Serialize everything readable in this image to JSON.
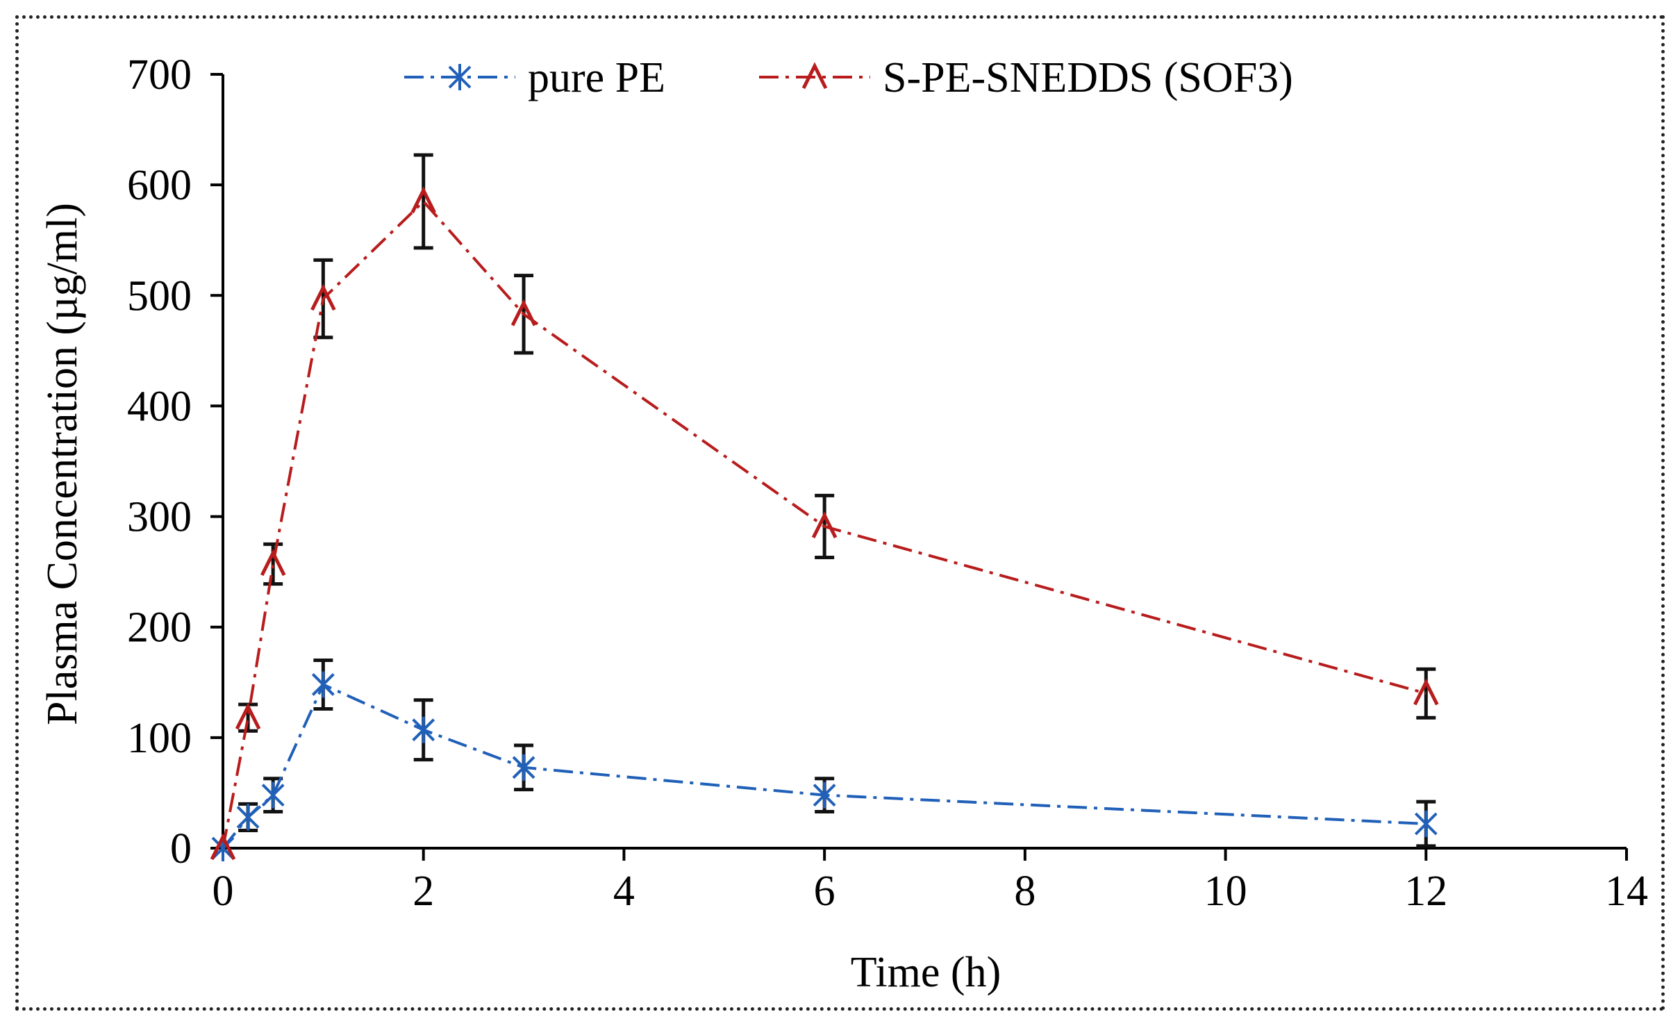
{
  "chart_data": {
    "type": "line",
    "title": "",
    "xlabel": "Time (h)",
    "ylabel": "Plasma  Concentration (µg/ml)",
    "xlim": [
      0,
      14
    ],
    "ylim": [
      0,
      700
    ],
    "x_ticks": [
      "0",
      "2",
      "4",
      "6",
      "8",
      "10",
      "12",
      "14"
    ],
    "y_ticks": [
      "0",
      "100",
      "200",
      "300",
      "400",
      "500",
      "600",
      "700"
    ],
    "x_tick_values": [
      0,
      2,
      4,
      6,
      8,
      10,
      12,
      14
    ],
    "y_tick_values": [
      0,
      100,
      200,
      300,
      400,
      500,
      600,
      700
    ],
    "grid": false,
    "legend_position": "top",
    "series": [
      {
        "name": "pure PE",
        "color": "#2060b8",
        "line_style": "dash-dot",
        "marker": "star",
        "x": [
          0,
          0.25,
          0.5,
          1,
          2,
          3,
          6,
          12
        ],
        "y": [
          0,
          28,
          48,
          148,
          107,
          73,
          48,
          22
        ],
        "error": [
          0,
          12,
          15,
          22,
          27,
          20,
          15,
          20
        ]
      },
      {
        "name": "S-PE-SNEDDS (SOF3)",
        "color": "#b81c1c",
        "line_style": "dash-dot",
        "marker": "caret",
        "x": [
          0,
          0.25,
          0.5,
          1,
          2,
          3,
          6,
          12
        ],
        "y": [
          0,
          118,
          257,
          497,
          585,
          483,
          291,
          140
        ],
        "error": [
          0,
          12,
          18,
          35,
          42,
          35,
          28,
          22
        ]
      }
    ],
    "errorbar_color": "#111111"
  }
}
